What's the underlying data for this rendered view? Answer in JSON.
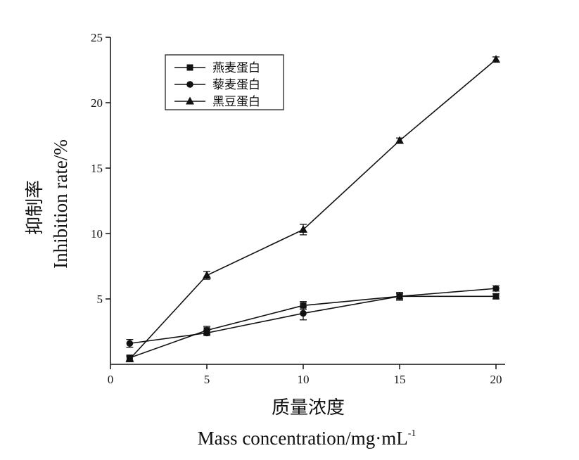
{
  "chart_data": {
    "type": "line",
    "x": [
      1,
      5,
      10,
      15,
      20
    ],
    "xlim": [
      0,
      20
    ],
    "ylim": [
      0,
      25
    ],
    "xticks": [
      "0",
      "5",
      "10",
      "15",
      "20"
    ],
    "yticks": [
      "5",
      "10",
      "15",
      "20",
      "25"
    ],
    "xlabel_cn": "质量浓度",
    "xlabel_en": "Mass  concentration/mg·mL",
    "xlabel_sup": "-1",
    "ylabel_cn": "抑制率",
    "ylabel_en": "Inhibition  rate/%",
    "grid": false,
    "legend_position": "top-left",
    "series": [
      {
        "name": "燕麦蛋白",
        "marker": "square",
        "values": [
          0.5,
          2.6,
          4.5,
          5.2,
          5.2
        ],
        "errors": [
          0.2,
          0.3,
          0.3,
          0.3,
          0.2
        ]
      },
      {
        "name": "藜麦蛋白",
        "marker": "circle",
        "values": [
          1.6,
          2.4,
          3.9,
          5.2,
          5.8
        ],
        "errors": [
          0.3,
          0.2,
          0.5,
          0.2,
          0.2
        ]
      },
      {
        "name": "黑豆蛋白",
        "marker": "triangle",
        "values": [
          0.4,
          6.8,
          10.3,
          17.1,
          23.3
        ],
        "errors": [
          0.2,
          0.3,
          0.4,
          0.2,
          0.2
        ]
      }
    ]
  }
}
